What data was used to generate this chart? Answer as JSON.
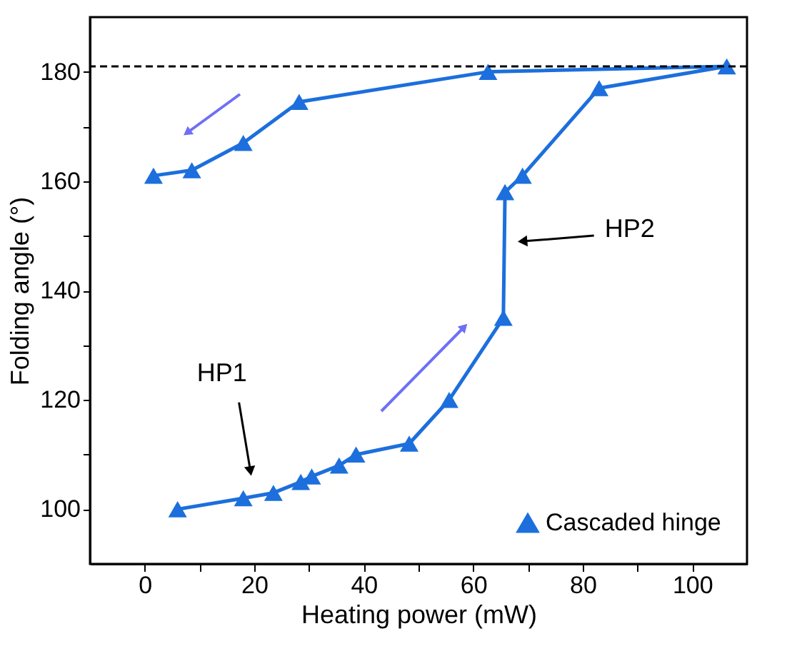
{
  "chart_data": {
    "type": "line",
    "xlabel": "Heating power (mW)",
    "ylabel": "Folding angle (°)",
    "x": [
      6,
      18,
      23.5,
      28.5,
      30.5,
      35.5,
      38.6,
      48.3,
      55.6,
      65.5,
      65.8,
      69,
      83,
      106.3,
      62.7,
      28.2,
      18,
      8.6,
      1.6
    ],
    "series": [
      {
        "name": "Cascaded hinge",
        "color": "#1c6fdc",
        "values": [
          100,
          102,
          103,
          105,
          106,
          108,
          110,
          112,
          120,
          135,
          158,
          161,
          177,
          181,
          180,
          174.5,
          167,
          162,
          161
        ]
      }
    ],
    "xlim": [
      -10,
      110
    ],
    "xticks": [
      0,
      {
        "value": 10,
        "label": null
      },
      20,
      {
        "value": 30,
        "label": null
      },
      40,
      {
        "value": 50,
        "label": null
      },
      60,
      {
        "value": 70,
        "label": null
      },
      80,
      {
        "value": 90,
        "label": null
      },
      100
    ],
    "ylim": [
      90,
      190
    ],
    "yticks": [
      100,
      {
        "value": 110,
        "label": null
      },
      120,
      {
        "value": 130,
        "label": null
      },
      140,
      {
        "value": 150,
        "label": null
      },
      160,
      {
        "value": 170,
        "label": null
      },
      180
    ],
    "ref_lines": [
      {
        "axis": "y",
        "value": 181,
        "color": "#000000",
        "line_style": "dashed"
      }
    ],
    "annotations": [
      {
        "text": "HP1",
        "x": 19.3,
        "y": 107
      },
      {
        "text": "HP2",
        "x": 69,
        "y": 149
      }
    ],
    "marker": "triangle",
    "line_style": "solid",
    "grid": false,
    "legend": "bottom right"
  }
}
